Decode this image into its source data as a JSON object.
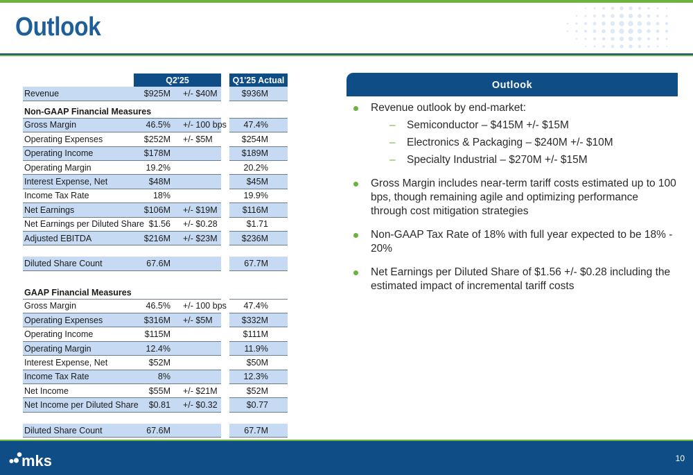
{
  "page": {
    "title": "Outlook",
    "page_number": "10",
    "logo_text": "mks"
  },
  "table": {
    "header": {
      "period": "Q2'25",
      "actual": "Q1'25 Actual"
    },
    "top_rows": [
      {
        "label": "Revenue",
        "value": "$925M",
        "range": "+/- $40M",
        "actual": "$936M"
      }
    ],
    "non_gaap_title": "Non-GAAP Financial Measures",
    "non_gaap_rows": [
      {
        "label": "Gross Margin",
        "value": "46.5%",
        "range": "+/- 100 bps",
        "actual": "47.4%"
      },
      {
        "label": "Operating Expenses",
        "value": "$252M",
        "range": "+/- $5M",
        "actual": "$254M"
      },
      {
        "label": "Operating Income",
        "value": "$178M",
        "range": "",
        "actual": "$189M"
      },
      {
        "label": "Operating Margin",
        "value": "19.2%",
        "range": "",
        "actual": "20.2%"
      },
      {
        "label": "Interest Expense, Net",
        "value": "$48M",
        "range": "",
        "actual": "$45M"
      },
      {
        "label": "Income Tax Rate",
        "value": "18%",
        "range": "",
        "actual": "19.9%"
      },
      {
        "label": "Net Earnings",
        "value": "$106M",
        "range": "+/- $19M",
        "actual": "$116M"
      },
      {
        "label": "Net Earnings per Diluted Share",
        "value": "$1.56",
        "range": "+/- $0.28",
        "actual": "$1.71"
      },
      {
        "label": "Adjusted EBITDA",
        "value": "$216M",
        "range": "+/- $23M",
        "actual": "$236M"
      }
    ],
    "non_gaap_share": {
      "label": "Diluted Share Count",
      "value": "67.6M",
      "range": "",
      "actual": "67.7M"
    },
    "gaap_title": "GAAP Financial Measures",
    "gaap_rows": [
      {
        "label": "Gross Margin",
        "value": "46.5%",
        "range": "+/- 100 bps",
        "actual": "47.4%"
      },
      {
        "label": "Operating Expenses",
        "value": "$316M",
        "range": "+/- $5M",
        "actual": "$332M"
      },
      {
        "label": "Operating Income",
        "value": "$115M",
        "range": "",
        "actual": "$111M"
      },
      {
        "label": "Operating Margin",
        "value": "12.4%",
        "range": "",
        "actual": "11.9%"
      },
      {
        "label": "Interest Expense, Net",
        "value": "$52M",
        "range": "",
        "actual": "$50M"
      },
      {
        "label": "Income Tax Rate",
        "value": "8%",
        "range": "",
        "actual": "12.3%"
      },
      {
        "label": "Net Income",
        "value": "$55M",
        "range": "+/- $21M",
        "actual": "$52M"
      },
      {
        "label": "Net Income per Diluted Share",
        "value": "$0.81",
        "range": "+/- $0.32",
        "actual": "$0.77"
      }
    ],
    "gaap_share": {
      "label": "Diluted Share Count",
      "value": "67.6M",
      "range": "",
      "actual": "67.7M"
    }
  },
  "outlook": {
    "title": "Outlook",
    "bullets": [
      {
        "text": "Revenue outlook by end-market:",
        "subs": [
          "Semiconductor – $415M +/- $15M",
          "Electronics & Packaging – $240M +/- $10M",
          "Specialty Industrial – $270M +/- $15M"
        ]
      },
      {
        "text": "Gross Margin includes near-term tariff costs estimated up to 100 bps, though remaining agile and optimizing performance through cost mitigation strategies",
        "subs": []
      },
      {
        "text": "Non-GAAP Tax Rate of 18% with full year expected to be 18% - 20%",
        "subs": []
      },
      {
        "text": "Net Earnings per Diluted Share of $1.56 +/- $0.28 including the estimated impact of incremental tariff costs",
        "subs": []
      }
    ]
  },
  "colors": {
    "brand_blue": "#0e4d86",
    "title_blue": "#1f5f99",
    "accent_green": "#6cb33f",
    "row_shade": "#c6dbf3"
  }
}
